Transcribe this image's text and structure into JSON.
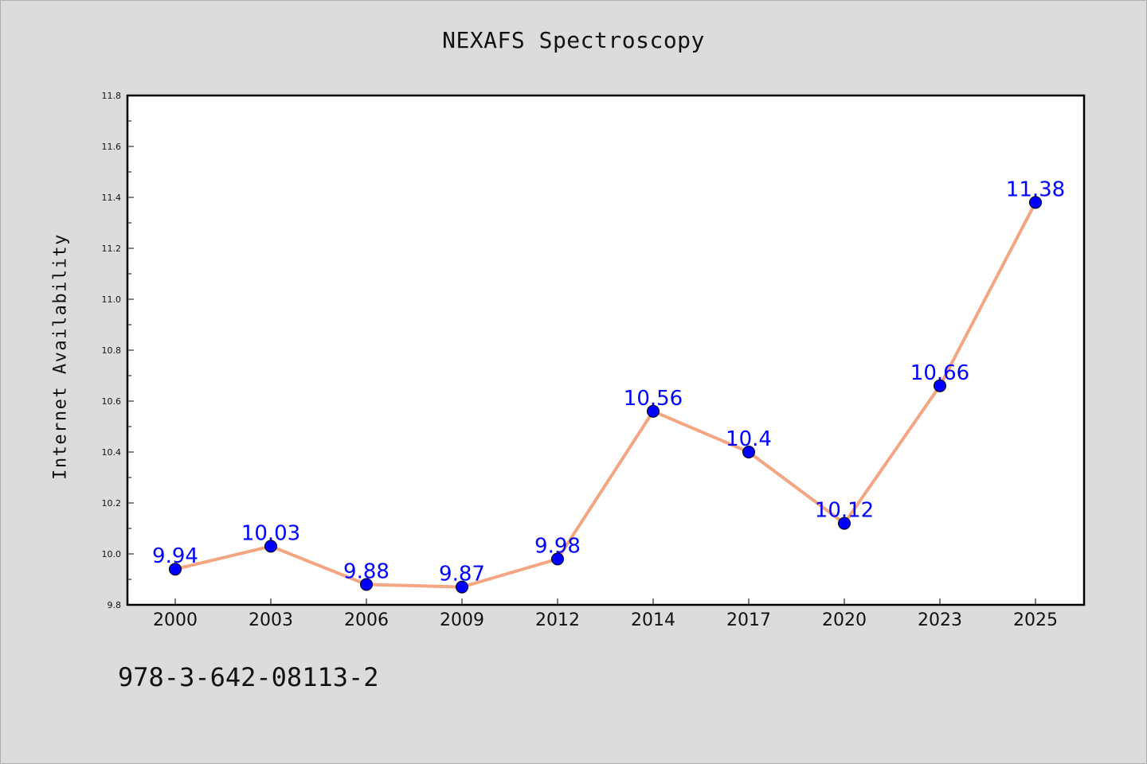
{
  "chart_data": {
    "type": "line",
    "title": "NEXAFS Spectroscopy",
    "xlabel": "",
    "ylabel": "Internet Availability",
    "categories": [
      "2000",
      "2003",
      "2006",
      "2009",
      "2012",
      "2014",
      "2017",
      "2020",
      "2023",
      "2025"
    ],
    "series": [
      {
        "values": [
          9.94,
          10.03,
          9.88,
          9.87,
          9.98,
          10.56,
          10.4,
          10.12,
          10.66,
          11.38
        ],
        "labels": [
          "9.94",
          "10.03",
          "9.88",
          "9.87",
          "9.98",
          "10.56",
          "10.4",
          "10.12",
          "10.66",
          "11.38"
        ]
      }
    ],
    "ylim": [
      9.8,
      11.8
    ],
    "yticks": [
      "9.8",
      "10.0",
      "10.2",
      "10.4",
      "10.6",
      "10.8",
      "11.0",
      "11.2",
      "11.4",
      "11.6",
      "11.8"
    ],
    "grid": false,
    "legend": "none",
    "colors": {
      "line": "#f4a582",
      "marker": "#0000ff",
      "label": "#0000ff",
      "background": "#dcdcdc",
      "plot_area": "#ffffff"
    }
  },
  "footnote": "978-3-642-08113-2"
}
